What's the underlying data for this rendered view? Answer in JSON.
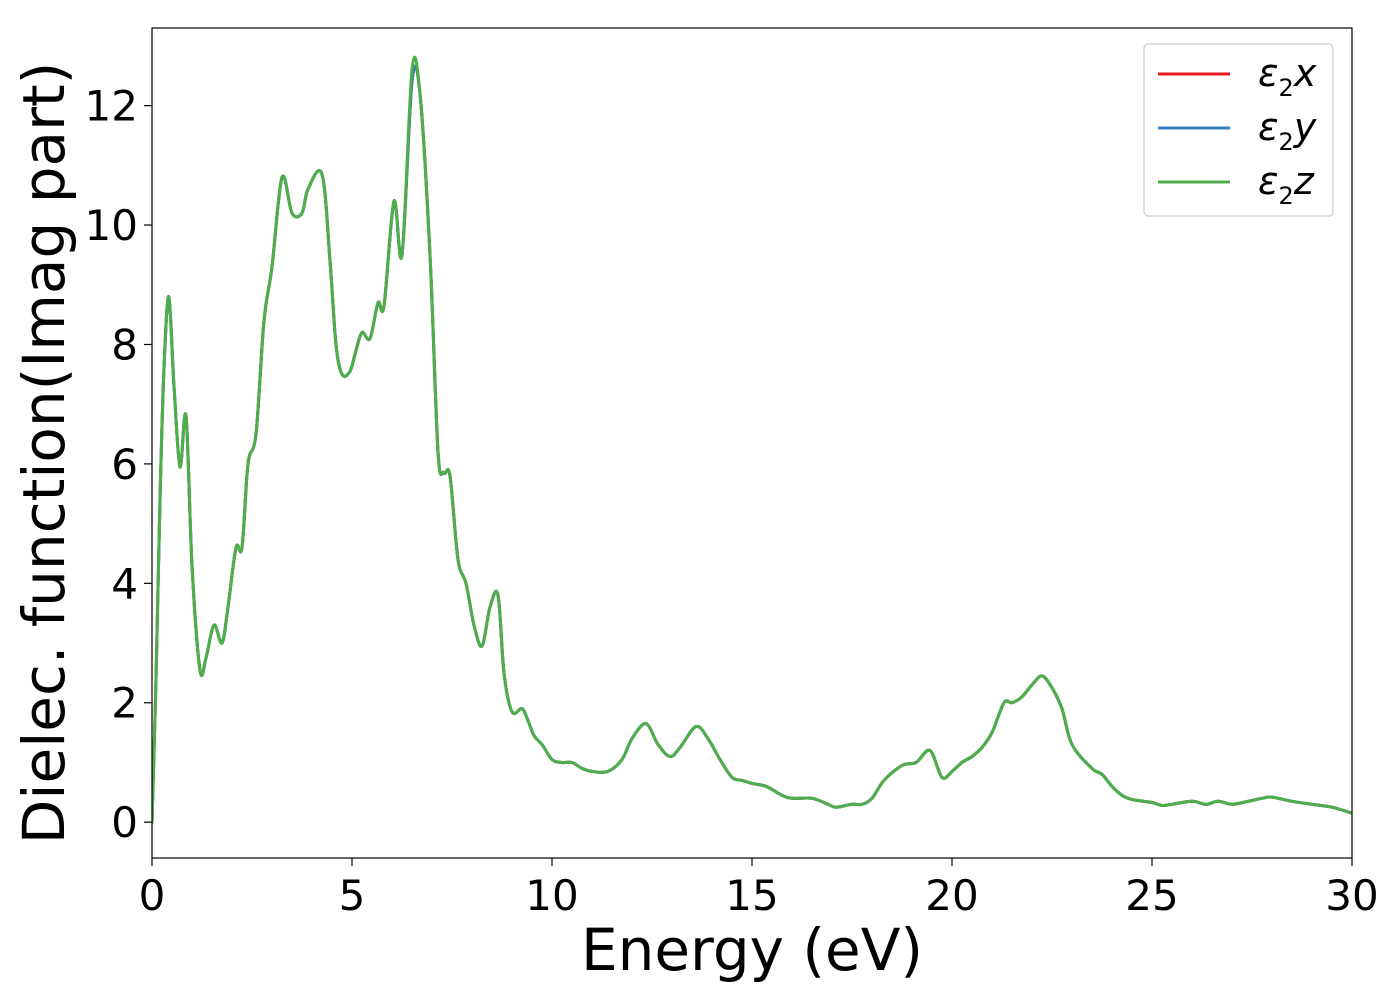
{
  "chart_data": {
    "type": "line",
    "title": "",
    "xlabel": "Energy (eV)",
    "ylabel": "Dielec. function(Imag part)",
    "xlim": [
      0,
      30
    ],
    "ylim": [
      -0.6,
      13.3
    ],
    "xticks": [
      0,
      5,
      10,
      15,
      20,
      25,
      30
    ],
    "yticks": [
      0,
      2,
      4,
      6,
      8,
      10,
      12
    ],
    "grid": false,
    "legend_position": "top-right",
    "series": [
      {
        "name": "ε2x",
        "legend": {
          "base": "ε",
          "sub": "2",
          "tail": "x"
        },
        "color": "#e41a1c",
        "x": [
          0,
          0.1,
          0.2,
          0.3,
          0.42,
          0.55,
          0.7,
          0.85,
          1.0,
          1.2,
          1.35,
          1.55,
          1.75,
          1.9,
          2.1,
          2.25,
          2.4,
          2.6,
          2.8,
          3.0,
          3.25,
          3.5,
          3.75,
          3.9,
          4.25,
          4.45,
          4.6,
          4.75,
          4.95,
          5.1,
          5.25,
          5.45,
          5.65,
          5.8,
          6.05,
          6.25,
          6.5,
          6.7,
          6.95,
          7.15,
          7.3,
          7.45,
          7.65,
          7.85,
          8.05,
          8.25,
          8.45,
          8.65,
          8.8,
          9.0,
          9.25,
          9.4,
          9.55,
          9.75,
          10.0,
          10.25,
          10.5,
          10.75,
          11.0,
          11.4,
          11.75,
          12.0,
          12.35,
          12.65,
          12.95,
          13.2,
          13.6,
          13.9,
          14.2,
          14.5,
          14.75,
          15.0,
          15.35,
          15.75,
          16.0,
          16.5,
          16.9,
          17.1,
          17.5,
          17.75,
          18.0,
          18.3,
          18.75,
          19.1,
          19.45,
          19.75,
          20.0,
          20.25,
          20.5,
          20.75,
          21.0,
          21.3,
          21.5,
          21.75,
          22.0,
          22.25,
          22.5,
          22.75,
          23.0,
          23.5,
          23.75,
          24.0,
          24.25,
          24.5,
          25.0,
          25.25,
          25.5,
          26.0,
          26.35,
          26.65,
          27.0,
          27.4,
          27.75,
          28.0,
          28.5,
          29.0,
          29.5,
          30.0
        ],
        "y": [
          0,
          2.4,
          5.4,
          7.6,
          8.8,
          7.3,
          5.95,
          6.8,
          4.3,
          2.55,
          2.75,
          3.3,
          3.0,
          3.6,
          4.6,
          4.6,
          6.0,
          6.5,
          8.4,
          9.3,
          10.8,
          10.2,
          10.2,
          10.6,
          10.85,
          9.4,
          8.0,
          7.5,
          7.55,
          7.9,
          8.2,
          8.1,
          8.7,
          8.65,
          10.4,
          9.5,
          12.4,
          12.2,
          9.5,
          6.2,
          5.85,
          5.8,
          4.4,
          4.0,
          3.3,
          2.95,
          3.6,
          3.8,
          2.5,
          1.85,
          1.9,
          1.7,
          1.45,
          1.3,
          1.05,
          1.0,
          1.0,
          0.9,
          0.85,
          0.85,
          1.05,
          1.4,
          1.65,
          1.3,
          1.1,
          1.25,
          1.6,
          1.4,
          1.05,
          0.75,
          0.7,
          0.65,
          0.6,
          0.45,
          0.4,
          0.4,
          0.3,
          0.25,
          0.3,
          0.3,
          0.4,
          0.7,
          0.95,
          1.0,
          1.2,
          0.75,
          0.85,
          1.0,
          1.1,
          1.25,
          1.5,
          2.0,
          2.0,
          2.1,
          2.3,
          2.45,
          2.25,
          1.9,
          1.3,
          0.9,
          0.8,
          0.6,
          0.45,
          0.38,
          0.33,
          0.28,
          0.3,
          0.35,
          0.3,
          0.35,
          0.3,
          0.35,
          0.4,
          0.42,
          0.35,
          0.3,
          0.25,
          0.15
        ]
      },
      {
        "name": "ε2y",
        "legend": {
          "base": "ε",
          "sub": "2",
          "tail": "y"
        },
        "color": "#377eb8",
        "x": [
          0,
          0.1,
          0.2,
          0.3,
          0.42,
          0.55,
          0.7,
          0.85,
          1.0,
          1.2,
          1.35,
          1.55,
          1.75,
          1.9,
          2.1,
          2.25,
          2.4,
          2.6,
          2.8,
          3.0,
          3.25,
          3.5,
          3.75,
          3.9,
          4.25,
          4.45,
          4.6,
          4.75,
          4.95,
          5.1,
          5.25,
          5.45,
          5.65,
          5.8,
          6.05,
          6.25,
          6.5,
          6.7,
          6.95,
          7.15,
          7.3,
          7.45,
          7.65,
          7.85,
          8.05,
          8.25,
          8.45,
          8.65,
          8.8,
          9.0,
          9.25,
          9.4,
          9.55,
          9.75,
          10.0,
          10.25,
          10.5,
          10.75,
          11.0,
          11.4,
          11.75,
          12.0,
          12.35,
          12.65,
          12.95,
          13.2,
          13.6,
          13.9,
          14.2,
          14.5,
          14.75,
          15.0,
          15.35,
          15.75,
          16.0,
          16.5,
          16.9,
          17.1,
          17.5,
          17.75,
          18.0,
          18.3,
          18.75,
          19.1,
          19.45,
          19.75,
          20.0,
          20.25,
          20.5,
          20.75,
          21.0,
          21.3,
          21.5,
          21.75,
          22.0,
          22.25,
          22.5,
          22.75,
          23.0,
          23.5,
          23.75,
          24.0,
          24.25,
          24.5,
          25.0,
          25.25,
          25.5,
          26.0,
          26.35,
          26.65,
          27.0,
          27.4,
          27.75,
          28.0,
          28.5,
          29.0,
          29.5,
          30.0
        ],
        "y": [
          0,
          2.4,
          5.4,
          7.6,
          8.8,
          7.3,
          5.95,
          6.8,
          4.3,
          2.55,
          2.75,
          3.3,
          3.0,
          3.6,
          4.6,
          4.6,
          6.0,
          6.5,
          8.4,
          9.3,
          10.8,
          10.2,
          10.2,
          10.6,
          10.85,
          9.4,
          8.0,
          7.5,
          7.55,
          7.9,
          8.2,
          8.1,
          8.7,
          8.65,
          10.4,
          9.5,
          12.4,
          12.2,
          9.5,
          6.2,
          5.85,
          5.8,
          4.4,
          4.0,
          3.3,
          2.95,
          3.6,
          3.8,
          2.5,
          1.85,
          1.9,
          1.7,
          1.45,
          1.3,
          1.05,
          1.0,
          1.0,
          0.9,
          0.85,
          0.85,
          1.05,
          1.4,
          1.65,
          1.3,
          1.1,
          1.25,
          1.6,
          1.4,
          1.05,
          0.75,
          0.7,
          0.65,
          0.6,
          0.45,
          0.4,
          0.4,
          0.3,
          0.25,
          0.3,
          0.3,
          0.4,
          0.7,
          0.95,
          1.0,
          1.2,
          0.75,
          0.85,
          1.0,
          1.1,
          1.25,
          1.5,
          2.0,
          2.0,
          2.1,
          2.3,
          2.45,
          2.25,
          1.9,
          1.3,
          0.9,
          0.8,
          0.6,
          0.45,
          0.38,
          0.33,
          0.28,
          0.3,
          0.35,
          0.3,
          0.35,
          0.3,
          0.35,
          0.4,
          0.42,
          0.35,
          0.3,
          0.25,
          0.15
        ]
      },
      {
        "name": "ε2z",
        "legend": {
          "base": "ε",
          "sub": "2",
          "tail": "z"
        },
        "color": "#4daf4a",
        "x": [
          0,
          0.1,
          0.2,
          0.3,
          0.42,
          0.55,
          0.7,
          0.85,
          1.0,
          1.2,
          1.35,
          1.55,
          1.75,
          1.9,
          2.1,
          2.25,
          2.4,
          2.6,
          2.8,
          3.0,
          3.25,
          3.5,
          3.75,
          3.9,
          4.25,
          4.45,
          4.6,
          4.75,
          4.95,
          5.1,
          5.25,
          5.45,
          5.65,
          5.8,
          6.05,
          6.25,
          6.5,
          6.7,
          6.95,
          7.15,
          7.3,
          7.45,
          7.65,
          7.85,
          8.05,
          8.25,
          8.45,
          8.65,
          8.8,
          9.0,
          9.25,
          9.4,
          9.55,
          9.75,
          10.0,
          10.25,
          10.5,
          10.75,
          11.0,
          11.4,
          11.75,
          12.0,
          12.35,
          12.65,
          12.95,
          13.2,
          13.6,
          13.9,
          14.2,
          14.5,
          14.75,
          15.0,
          15.35,
          15.75,
          16.0,
          16.5,
          16.9,
          17.1,
          17.5,
          17.75,
          18.0,
          18.3,
          18.75,
          19.1,
          19.45,
          19.75,
          20.0,
          20.25,
          20.5,
          20.75,
          21.0,
          21.3,
          21.5,
          21.75,
          22.0,
          22.25,
          22.5,
          22.75,
          23.0,
          23.5,
          23.75,
          24.0,
          24.25,
          24.5,
          25.0,
          25.25,
          25.5,
          26.0,
          26.35,
          26.65,
          27.0,
          27.4,
          27.75,
          28.0,
          28.5,
          29.0,
          29.5,
          30.0
        ],
        "y": [
          0,
          2.4,
          5.4,
          7.6,
          8.8,
          7.3,
          5.95,
          6.8,
          4.3,
          2.55,
          2.75,
          3.3,
          3.0,
          3.6,
          4.6,
          4.6,
          6.0,
          6.5,
          8.4,
          9.3,
          10.8,
          10.2,
          10.2,
          10.6,
          10.85,
          9.4,
          8.0,
          7.5,
          7.55,
          7.9,
          8.2,
          8.1,
          8.7,
          8.65,
          10.4,
          9.5,
          12.6,
          12.2,
          9.5,
          6.2,
          5.85,
          5.8,
          4.4,
          4.0,
          3.3,
          2.95,
          3.6,
          3.8,
          2.5,
          1.85,
          1.9,
          1.7,
          1.45,
          1.3,
          1.05,
          1.0,
          1.0,
          0.9,
          0.85,
          0.85,
          1.05,
          1.4,
          1.65,
          1.3,
          1.1,
          1.25,
          1.6,
          1.4,
          1.05,
          0.75,
          0.7,
          0.65,
          0.6,
          0.45,
          0.4,
          0.4,
          0.3,
          0.25,
          0.3,
          0.3,
          0.4,
          0.7,
          0.95,
          1.0,
          1.2,
          0.75,
          0.85,
          1.0,
          1.1,
          1.25,
          1.5,
          2.0,
          2.0,
          2.1,
          2.3,
          2.45,
          2.25,
          1.9,
          1.3,
          0.9,
          0.8,
          0.6,
          0.45,
          0.38,
          0.33,
          0.28,
          0.3,
          0.35,
          0.3,
          0.35,
          0.3,
          0.35,
          0.4,
          0.42,
          0.35,
          0.3,
          0.25,
          0.15
        ]
      }
    ]
  }
}
